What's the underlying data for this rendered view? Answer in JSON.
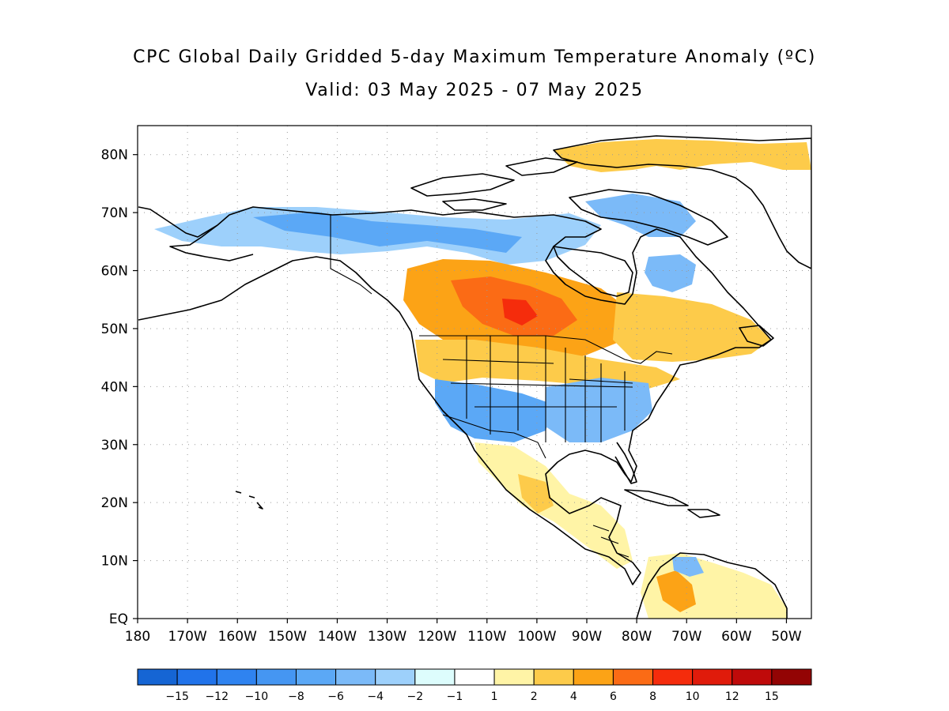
{
  "title": "CPC Global Daily Gridded 5-day Maximum Temperature Anomaly (ºC)",
  "subtitle": "Valid: 03 May 2025 - 07 May 2025",
  "map": {
    "lat_labels": [
      "80N",
      "70N",
      "60N",
      "50N",
      "40N",
      "30N",
      "20N",
      "10N",
      "EQ"
    ],
    "lon_labels": [
      "180",
      "170W",
      "160W",
      "150W",
      "140W",
      "130W",
      "120W",
      "110W",
      "100W",
      "90W",
      "80W",
      "70W",
      "60W",
      "50W"
    ],
    "lon_range": [
      -180,
      -45
    ],
    "lat_range": [
      0,
      85
    ],
    "grid": true
  },
  "colorbar": {
    "colors": [
      "#1565d4",
      "#2173ea",
      "#2f83f0",
      "#4596f2",
      "#5ba8f6",
      "#7bbaf8",
      "#9dd0fb",
      "#ddfdfd",
      "#ffffff",
      "#fff4a6",
      "#fdcb4a",
      "#fca316",
      "#fb6b15",
      "#f52c0c",
      "#e01b0b",
      "#bf0a0a",
      "#930404"
    ],
    "labels": [
      "-15",
      "-12",
      "-10",
      "-8",
      "-6",
      "-4",
      "-2",
      "-1",
      "1",
      "2",
      "4",
      "6",
      "8",
      "10",
      "12",
      "15"
    ]
  },
  "anomaly_regions": [
    {
      "name": "alaska-arctic-cold",
      "value": -4,
      "color": "#7bbaf8"
    },
    {
      "name": "northern-canada-cold",
      "value": -6,
      "color": "#5ba8f6"
    },
    {
      "name": "labrador-cold",
      "value": -4,
      "color": "#7bbaf8"
    },
    {
      "name": "southwest-us-cold",
      "value": -6,
      "color": "#5ba8f6"
    },
    {
      "name": "central-us-cold",
      "value": -4,
      "color": "#7bbaf8"
    },
    {
      "name": "prairies-warm",
      "value": 6,
      "color": "#fca316"
    },
    {
      "name": "prairies-core-warm",
      "value": 8,
      "color": "#fb6b15"
    },
    {
      "name": "eastern-canada-warm",
      "value": 4,
      "color": "#fdcb4a"
    },
    {
      "name": "greenland-warm",
      "value": 4,
      "color": "#fdcb4a"
    },
    {
      "name": "mexico-warm",
      "value": 2,
      "color": "#fff4a6"
    },
    {
      "name": "colombia-warm",
      "value": 6,
      "color": "#fca316"
    }
  ]
}
